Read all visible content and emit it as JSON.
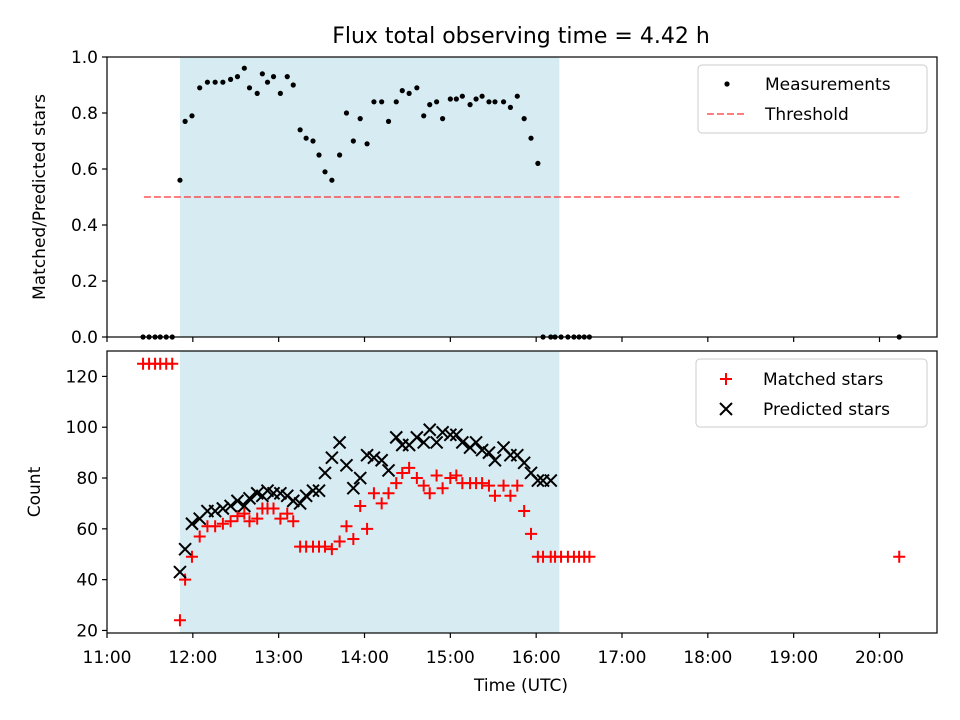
{
  "chart_data": {
    "title": "Flux total observing time = 4.42 h",
    "xlabel": "Time (UTC)",
    "x_units": "hours UTC",
    "xlim": [
      11.0,
      20.67
    ],
    "x_ticks": [
      11,
      12,
      13,
      14,
      15,
      16,
      17,
      18,
      19,
      20
    ],
    "x_tick_labels": [
      "11:00",
      "12:00",
      "13:00",
      "14:00",
      "15:00",
      "16:00",
      "17:00",
      "18:00",
      "19:00",
      "20:00"
    ],
    "shaded_span": [
      11.85,
      16.27
    ],
    "colors": {
      "span": "#add8e6",
      "measurements": "#000000",
      "threshold": "#ff0000",
      "matched": "#ff0000",
      "predicted": "#000000"
    },
    "panels": [
      {
        "id": "ratio",
        "type": "scatter",
        "ylabel": "Matched/Predicted stars",
        "ylim": [
          0,
          1.0
        ],
        "y_ticks": [
          0,
          0.2,
          0.4,
          0.6,
          0.8,
          1.0
        ],
        "y_tick_labels": [
          "0.0",
          "0.2",
          "0.4",
          "0.6",
          "0.8",
          "1.0"
        ],
        "legend": {
          "position": "upper right",
          "entries": [
            "Measurements",
            "Threshold"
          ]
        },
        "threshold": {
          "name": "Threshold",
          "y": 0.5,
          "x": [
            11.43,
            20.23
          ]
        },
        "series": [
          {
            "name": "Measurements",
            "marker": "dot",
            "x": [
              11.42,
              11.49,
              11.56,
              11.62,
              11.69,
              11.76,
              11.85,
              11.91,
              11.99,
              12.08,
              12.17,
              12.26,
              12.35,
              12.44,
              12.52,
              12.6,
              12.66,
              12.75,
              12.81,
              12.87,
              12.94,
              13.02,
              13.1,
              13.17,
              13.25,
              13.32,
              13.4,
              13.47,
              13.54,
              13.62,
              13.71,
              13.79,
              13.87,
              13.95,
              14.03,
              14.11,
              14.2,
              14.28,
              14.37,
              14.44,
              14.52,
              14.61,
              14.69,
              14.76,
              14.84,
              14.91,
              15.0,
              15.07,
              15.14,
              15.23,
              15.3,
              15.37,
              15.45,
              15.52,
              15.62,
              15.7,
              15.78,
              15.86,
              15.94,
              16.02,
              16.08,
              16.17,
              16.22,
              16.29,
              16.37,
              16.44,
              16.5,
              16.56,
              16.62,
              20.23
            ],
            "y": [
              0,
              0,
              0,
              0,
              0,
              0,
              0.56,
              0.77,
              0.79,
              0.89,
              0.91,
              0.91,
              0.91,
              0.92,
              0.93,
              0.96,
              0.89,
              0.87,
              0.94,
              0.91,
              0.93,
              0.87,
              0.93,
              0.9,
              0.74,
              0.71,
              0.7,
              0.65,
              0.59,
              0.56,
              0.65,
              0.8,
              0.7,
              0.78,
              0.69,
              0.84,
              0.84,
              0.77,
              0.84,
              0.88,
              0.87,
              0.89,
              0.79,
              0.83,
              0.84,
              0.78,
              0.85,
              0.85,
              0.86,
              0.83,
              0.85,
              0.86,
              0.84,
              0.84,
              0.84,
              0.82,
              0.86,
              0.78,
              0.71,
              0.62,
              0,
              0,
              0,
              0,
              0,
              0,
              0,
              0,
              0,
              0
            ]
          }
        ]
      },
      {
        "id": "count",
        "type": "scatter",
        "ylabel": "Count",
        "ylim": [
          19,
          130
        ],
        "y_ticks": [
          20,
          40,
          60,
          80,
          100,
          120
        ],
        "y_tick_labels": [
          "20",
          "40",
          "60",
          "80",
          "100",
          "120"
        ],
        "legend": {
          "position": "upper right",
          "entries": [
            "Matched stars",
            "Predicted stars"
          ]
        },
        "series": [
          {
            "name": "Matched stars",
            "marker": "plus",
            "x": [
              11.42,
              11.49,
              11.56,
              11.62,
              11.69,
              11.76,
              11.85,
              11.91,
              11.99,
              12.08,
              12.17,
              12.26,
              12.35,
              12.44,
              12.52,
              12.6,
              12.66,
              12.75,
              12.81,
              12.87,
              12.94,
              13.02,
              13.1,
              13.17,
              13.25,
              13.32,
              13.4,
              13.47,
              13.54,
              13.62,
              13.71,
              13.79,
              13.87,
              13.95,
              14.03,
              14.11,
              14.2,
              14.28,
              14.37,
              14.44,
              14.52,
              14.61,
              14.69,
              14.76,
              14.84,
              14.91,
              15.0,
              15.07,
              15.14,
              15.23,
              15.3,
              15.37,
              15.45,
              15.52,
              15.62,
              15.7,
              15.78,
              15.86,
              15.94,
              16.02,
              16.08,
              16.17,
              16.22,
              16.29,
              16.37,
              16.44,
              16.5,
              16.56,
              16.62,
              20.23
            ],
            "y": [
              125,
              125,
              125,
              125,
              125,
              125,
              24,
              40,
              49,
              57,
              61,
              61,
              62,
              63,
              65,
              66,
              63,
              64,
              68,
              68,
              68,
              64,
              66,
              63,
              53,
              53,
              53,
              53,
              53,
              52,
              55,
              61,
              56,
              69,
              60,
              74,
              70,
              74,
              78,
              82,
              84,
              80,
              77,
              74,
              81,
              76,
              80,
              81,
              78,
              78,
              78,
              78,
              77,
              73,
              77,
              73,
              77,
              67,
              58,
              49,
              49,
              49,
              49,
              49,
              49,
              49,
              49,
              49,
              49,
              49
            ]
          },
          {
            "name": "Predicted stars",
            "marker": "x",
            "x": [
              11.85,
              11.91,
              11.99,
              12.08,
              12.17,
              12.26,
              12.35,
              12.44,
              12.52,
              12.6,
              12.66,
              12.75,
              12.81,
              12.87,
              12.94,
              13.02,
              13.1,
              13.17,
              13.25,
              13.32,
              13.4,
              13.47,
              13.54,
              13.62,
              13.71,
              13.79,
              13.87,
              13.95,
              14.03,
              14.11,
              14.2,
              14.28,
              14.37,
              14.44,
              14.52,
              14.61,
              14.69,
              14.76,
              14.84,
              14.91,
              15.0,
              15.07,
              15.14,
              15.23,
              15.3,
              15.37,
              15.45,
              15.52,
              15.62,
              15.7,
              15.78,
              15.86,
              15.94,
              16.02,
              16.08,
              16.17
            ],
            "y": [
              43,
              52,
              62,
              64,
              67,
              67,
              68,
              69,
              71,
              69,
              72,
              74,
              73,
              75,
              74,
              74,
              73,
              71,
              70,
              73,
              75,
              75,
              82,
              88,
              94,
              85,
              76,
              80,
              89,
              88,
              87,
              83,
              96,
              93,
              93,
              96,
              94,
              99,
              94,
              98,
              97,
              97,
              94,
              92,
              94,
              91,
              90,
              87,
              92,
              89,
              89,
              86,
              82,
              79,
              79,
              79
            ]
          }
        ]
      }
    ]
  }
}
